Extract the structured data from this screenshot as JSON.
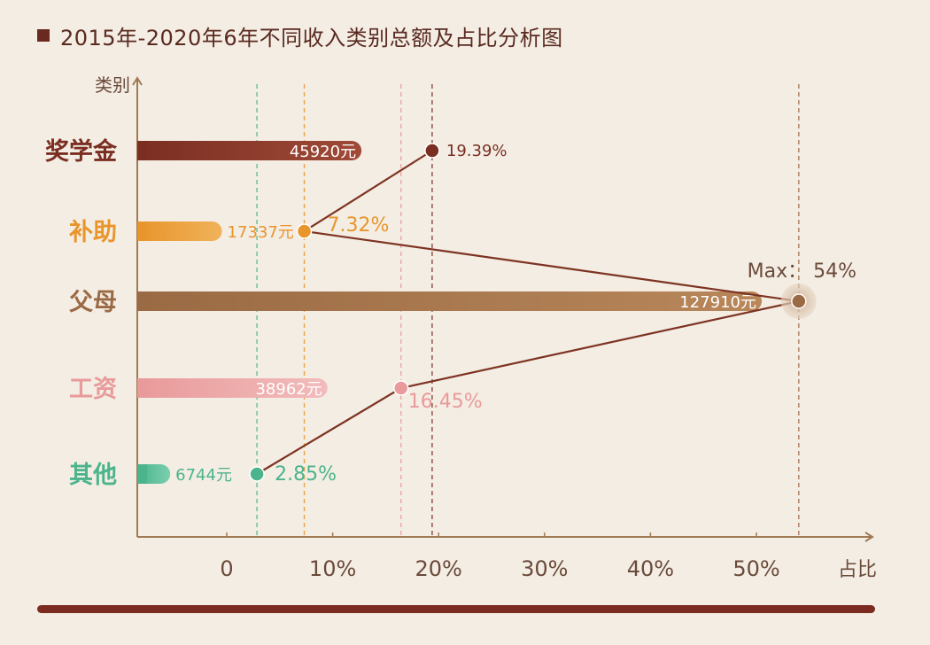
{
  "title": "2015年-2020年6年不同收入类别总额及占比分析图",
  "colors": {
    "background": "#f4ede4",
    "axis": "#a07a55",
    "connector": "#7d3322"
  },
  "chart_data": {
    "type": "bar",
    "orientation": "horizontal",
    "title": "2015年-2020年6年不同收入类别总额及占比分析图",
    "ylabel": "类别",
    "xlabel": "占比",
    "x_ticks": [
      "0",
      "10%",
      "20%",
      "30%",
      "40%",
      "50%"
    ],
    "x_range": [
      0,
      55
    ],
    "max_label": "Max：  54%",
    "categories": [
      {
        "name": "奖学金",
        "amount": 45920,
        "amount_label": "45920元",
        "share": 19.39,
        "share_label": "19.39%",
        "color": "#7a2e21",
        "color_light": "#a04a38"
      },
      {
        "name": "补助",
        "amount": 17337,
        "amount_label": "17337元",
        "share": 7.32,
        "share_label": "7.32%",
        "color": "#e8952c",
        "color_light": "#f0b25a"
      },
      {
        "name": "父母",
        "amount": 127910,
        "amount_label": "127910元",
        "share": 54,
        "share_label": "",
        "color": "#9a6a44",
        "color_light": "#b8875a"
      },
      {
        "name": "工资",
        "amount": 38962,
        "amount_label": "38962元",
        "share": 16.45,
        "share_label": "16.45%",
        "color": "#e99a9a",
        "color_light": "#f2bcbc"
      },
      {
        "name": "其他",
        "amount": 6744,
        "amount_label": "6744元",
        "share": 2.85,
        "share_label": "2.85%",
        "color": "#4bb48c",
        "color_light": "#7bcfae"
      }
    ],
    "grid": false,
    "legend": "none"
  }
}
